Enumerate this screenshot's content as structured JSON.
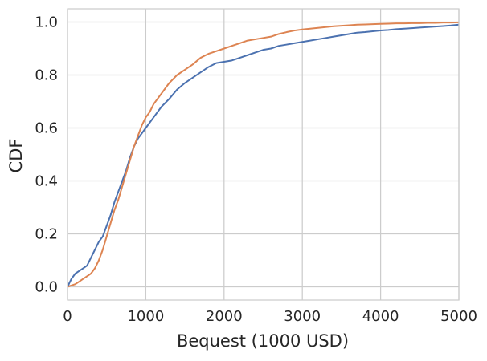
{
  "chart_data": {
    "type": "line",
    "title": "",
    "xlabel": "Bequest (1000 USD)",
    "ylabel": "CDF",
    "xlim": [
      0,
      5000
    ],
    "ylim": [
      -0.05,
      1.05
    ],
    "xticks": [
      0,
      1000,
      2000,
      3000,
      4000,
      5000
    ],
    "xtick_labels": [
      "0",
      "1000",
      "2000",
      "3000",
      "4000",
      "5000"
    ],
    "yticks": [
      0.0,
      0.2,
      0.4,
      0.6,
      0.8,
      1.0
    ],
    "ytick_labels": [
      "0.0",
      "0.2",
      "0.4",
      "0.6",
      "0.8",
      "1.0"
    ],
    "grid": true,
    "legend": "none",
    "series": [
      {
        "color": "#4c72b0",
        "x": [
          0,
          50,
          100,
          150,
          200,
          250,
          300,
          350,
          400,
          450,
          500,
          550,
          600,
          650,
          700,
          750,
          800,
          850,
          900,
          950,
          1000,
          1050,
          1100,
          1150,
          1200,
          1300,
          1400,
          1500,
          1600,
          1700,
          1800,
          1900,
          2000,
          2100,
          2200,
          2300,
          2400,
          2500,
          2600,
          2700,
          2800,
          2900,
          3000,
          3100,
          3200,
          3300,
          3400,
          3500,
          3600,
          3700,
          3800,
          3900,
          4000,
          4100,
          4200,
          4300,
          4400,
          4500,
          4600,
          4700,
          4800,
          4900,
          5000
        ],
        "y": [
          0.0,
          0.03,
          0.05,
          0.06,
          0.07,
          0.08,
          0.11,
          0.14,
          0.17,
          0.19,
          0.23,
          0.27,
          0.32,
          0.36,
          0.4,
          0.44,
          0.49,
          0.53,
          0.56,
          0.58,
          0.6,
          0.62,
          0.64,
          0.66,
          0.68,
          0.71,
          0.745,
          0.77,
          0.79,
          0.81,
          0.83,
          0.845,
          0.85,
          0.855,
          0.865,
          0.875,
          0.885,
          0.895,
          0.9,
          0.91,
          0.915,
          0.92,
          0.925,
          0.93,
          0.935,
          0.94,
          0.945,
          0.95,
          0.955,
          0.96,
          0.962,
          0.965,
          0.968,
          0.97,
          0.973,
          0.975,
          0.977,
          0.979,
          0.981,
          0.983,
          0.985,
          0.987,
          0.99
        ]
      },
      {
        "color": "#dd8452",
        "x": [
          0,
          50,
          100,
          150,
          200,
          250,
          300,
          350,
          400,
          450,
          500,
          550,
          600,
          650,
          700,
          750,
          800,
          850,
          900,
          950,
          1000,
          1050,
          1100,
          1150,
          1200,
          1300,
          1400,
          1500,
          1600,
          1700,
          1800,
          1900,
          2000,
          2100,
          2200,
          2300,
          2400,
          2500,
          2600,
          2700,
          2800,
          2900,
          3000,
          3100,
          3200,
          3300,
          3400,
          3500,
          3600,
          3700,
          3800,
          3900,
          4000,
          4100,
          4200,
          4300,
          4400,
          4500,
          4600,
          4700,
          4800,
          4900,
          5000
        ],
        "y": [
          0.0,
          0.005,
          0.01,
          0.02,
          0.03,
          0.04,
          0.05,
          0.07,
          0.1,
          0.14,
          0.19,
          0.24,
          0.29,
          0.33,
          0.38,
          0.43,
          0.48,
          0.53,
          0.57,
          0.61,
          0.64,
          0.66,
          0.69,
          0.71,
          0.73,
          0.77,
          0.8,
          0.82,
          0.84,
          0.865,
          0.88,
          0.89,
          0.9,
          0.91,
          0.92,
          0.93,
          0.935,
          0.94,
          0.945,
          0.955,
          0.962,
          0.968,
          0.972,
          0.975,
          0.978,
          0.981,
          0.984,
          0.986,
          0.988,
          0.99,
          0.991,
          0.992,
          0.993,
          0.994,
          0.995,
          0.995,
          0.996,
          0.996,
          0.997,
          0.997,
          0.998,
          0.998,
          0.999
        ]
      }
    ]
  }
}
